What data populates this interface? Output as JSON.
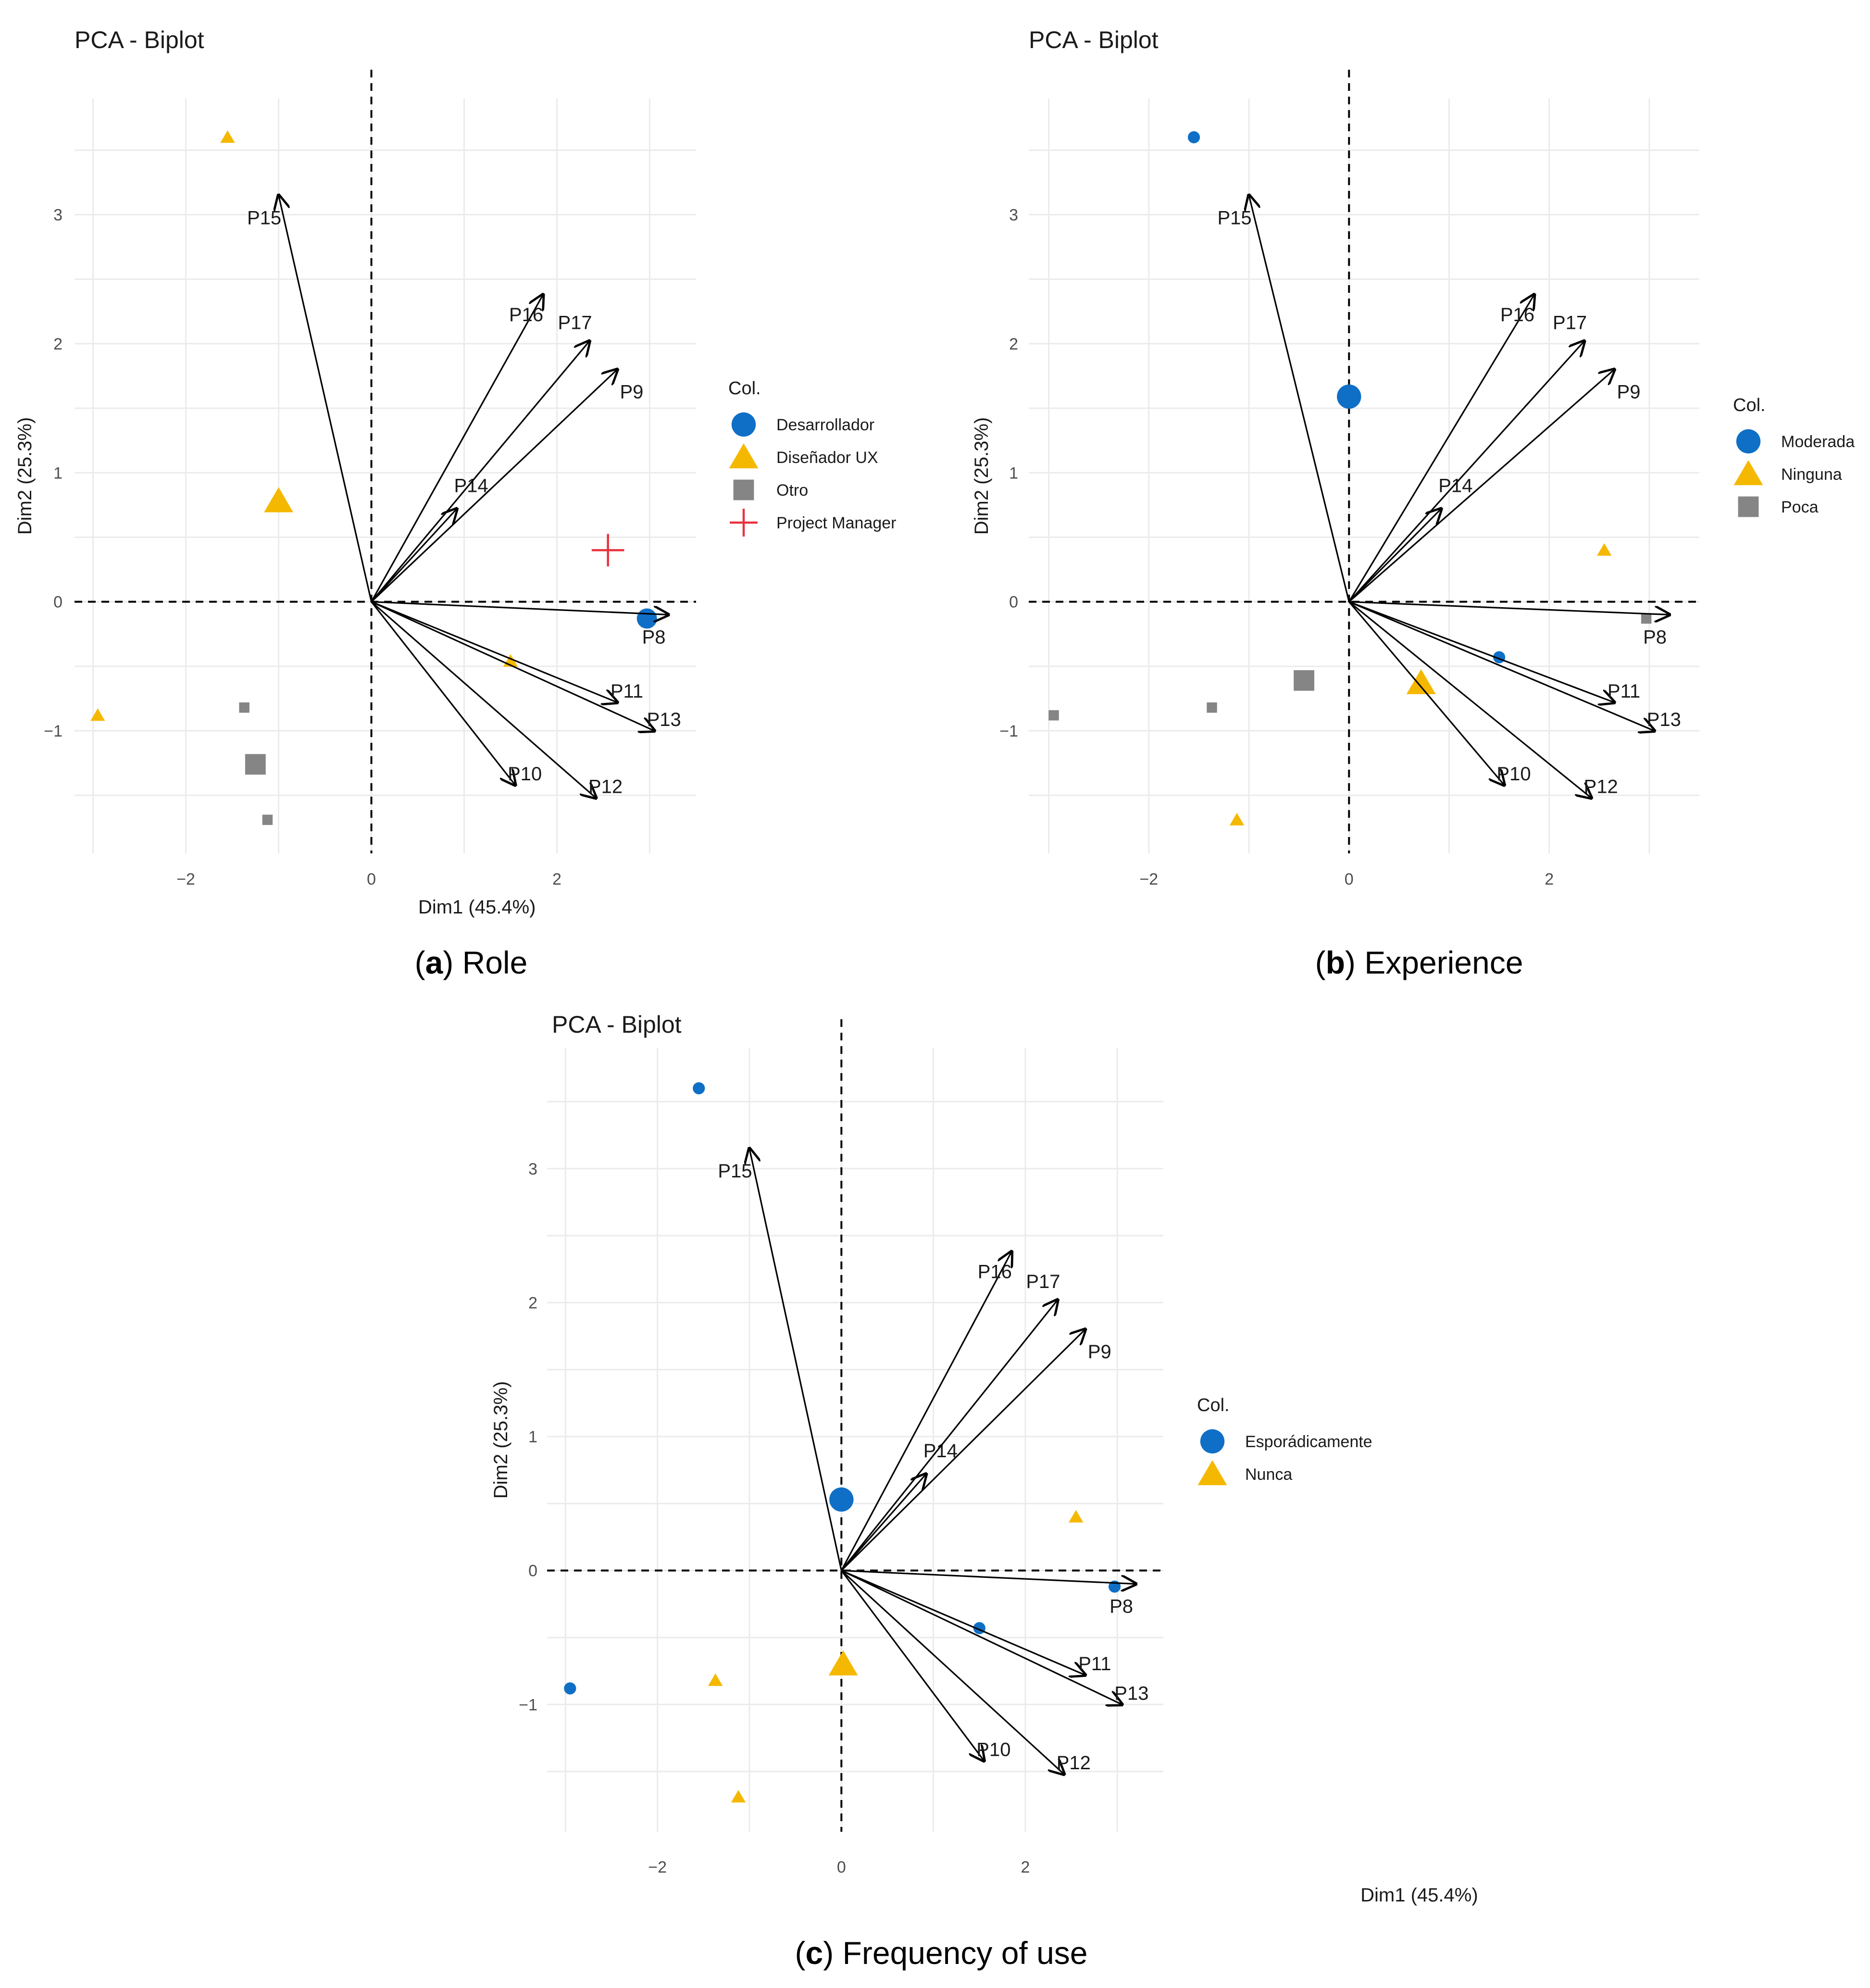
{
  "colors": {
    "blue": "#0f6fc6",
    "yellow": "#f5b800",
    "gray": "#858585",
    "red": "#e8323c",
    "grid": "#ebebeb",
    "axis_text": "#4d4d4d",
    "arrow": "#000000"
  },
  "chart_data": [
    {
      "id": "a",
      "type": "scatter",
      "title": "PCA - Biplot",
      "xlabel": "Dim1 (45.4%)",
      "ylabel": "Dim2 (25.3%)",
      "xlim": [
        -3.2,
        3.5
      ],
      "ylim": [
        -1.95,
        3.9
      ],
      "xticks": [
        -2,
        0,
        2
      ],
      "yticks": [
        -1,
        0,
        1,
        2,
        3
      ],
      "caption_letter": "a",
      "caption_text": "Role",
      "legend_title": "Col.",
      "legend": [
        {
          "label": "Desarrollador",
          "shape": "circle",
          "color": "#0f6fc6"
        },
        {
          "label": "Diseñador UX",
          "shape": "triangle",
          "color": "#f5b800"
        },
        {
          "label": "Otro",
          "shape": "square",
          "color": "#858585"
        },
        {
          "label": "Project Manager",
          "shape": "plus",
          "color": "#e8323c"
        }
      ],
      "vectors": [
        {
          "label": "P8",
          "x": 3.2,
          "y": -0.1
        },
        {
          "label": "P9",
          "x": 2.65,
          "y": 1.8
        },
        {
          "label": "P10",
          "x": 1.55,
          "y": -1.42
        },
        {
          "label": "P11",
          "x": 2.65,
          "y": -0.78
        },
        {
          "label": "P12",
          "x": 2.42,
          "y": -1.52
        },
        {
          "label": "P13",
          "x": 3.05,
          "y": -1.0
        },
        {
          "label": "P14",
          "x": 0.92,
          "y": 0.72
        },
        {
          "label": "P15",
          "x": -1.0,
          "y": 3.15
        },
        {
          "label": "P16",
          "x": 1.85,
          "y": 2.38
        },
        {
          "label": "P17",
          "x": 2.35,
          "y": 2.02
        }
      ],
      "points": [
        {
          "x": -1.55,
          "y": 3.6,
          "shape": "triangle",
          "color": "#f5b800",
          "size": 3
        },
        {
          "x": -1.0,
          "y": 0.78,
          "shape": "triangle",
          "color": "#f5b800",
          "size": 6
        },
        {
          "x": 2.55,
          "y": 0.4,
          "shape": "plus",
          "color": "#e8323c",
          "size": 7
        },
        {
          "x": 2.97,
          "y": -0.13,
          "shape": "circle",
          "color": "#0f6fc6",
          "size": 5
        },
        {
          "x": 1.5,
          "y": -0.46,
          "shape": "triangle",
          "color": "#f5b800",
          "size": 3
        },
        {
          "x": -2.95,
          "y": -0.88,
          "shape": "triangle",
          "color": "#f5b800",
          "size": 3
        },
        {
          "x": -1.37,
          "y": -0.82,
          "shape": "square",
          "color": "#858585",
          "size": 3
        },
        {
          "x": -1.25,
          "y": -1.26,
          "shape": "square",
          "color": "#858585",
          "size": 6
        },
        {
          "x": -1.12,
          "y": -1.69,
          "shape": "square",
          "color": "#858585",
          "size": 3
        }
      ]
    },
    {
      "id": "b",
      "type": "scatter",
      "title": "PCA - Biplot",
      "xlabel": "Dim1 (45.4%)",
      "ylabel": "Dim2 (25.3%)",
      "xlim": [
        -3.2,
        3.5
      ],
      "ylim": [
        -1.95,
        3.9
      ],
      "xticks": [
        -2,
        0,
        2
      ],
      "yticks": [
        -1,
        0,
        1,
        2,
        3
      ],
      "caption_letter": "b",
      "caption_text": "Experience",
      "legend_title": "Col.",
      "legend": [
        {
          "label": "Moderada",
          "shape": "circle",
          "color": "#0f6fc6"
        },
        {
          "label": "Ninguna",
          "shape": "triangle",
          "color": "#f5b800"
        },
        {
          "label": "Poca",
          "shape": "square",
          "color": "#858585"
        }
      ],
      "vectors": [
        {
          "label": "P8",
          "x": 3.2,
          "y": -0.1
        },
        {
          "label": "P9",
          "x": 2.65,
          "y": 1.8
        },
        {
          "label": "P10",
          "x": 1.55,
          "y": -1.42
        },
        {
          "label": "P11",
          "x": 2.65,
          "y": -0.78
        },
        {
          "label": "P12",
          "x": 2.42,
          "y": -1.52
        },
        {
          "label": "P13",
          "x": 3.05,
          "y": -1.0
        },
        {
          "label": "P14",
          "x": 0.92,
          "y": 0.72
        },
        {
          "label": "P15",
          "x": -1.0,
          "y": 3.15
        },
        {
          "label": "P16",
          "x": 1.85,
          "y": 2.38
        },
        {
          "label": "P17",
          "x": 2.35,
          "y": 2.02
        }
      ],
      "points": [
        {
          "x": -1.55,
          "y": 3.6,
          "shape": "circle",
          "color": "#0f6fc6",
          "size": 3
        },
        {
          "x": 0.0,
          "y": 1.59,
          "shape": "circle",
          "color": "#0f6fc6",
          "size": 6
        },
        {
          "x": 2.55,
          "y": 0.4,
          "shape": "triangle",
          "color": "#f5b800",
          "size": 3
        },
        {
          "x": 2.97,
          "y": -0.13,
          "shape": "square",
          "color": "#858585",
          "size": 3
        },
        {
          "x": 1.5,
          "y": -0.43,
          "shape": "circle",
          "color": "#0f6fc6",
          "size": 3
        },
        {
          "x": -0.45,
          "y": -0.61,
          "shape": "square",
          "color": "#858585",
          "size": 6
        },
        {
          "x": 0.72,
          "y": -0.63,
          "shape": "triangle",
          "color": "#f5b800",
          "size": 6
        },
        {
          "x": -2.95,
          "y": -0.88,
          "shape": "square",
          "color": "#858585",
          "size": 3
        },
        {
          "x": -1.37,
          "y": -0.82,
          "shape": "square",
          "color": "#858585",
          "size": 3
        },
        {
          "x": -1.12,
          "y": -1.69,
          "shape": "triangle",
          "color": "#f5b800",
          "size": 3
        }
      ]
    },
    {
      "id": "c",
      "type": "scatter",
      "title": "PCA - Biplot",
      "xlabel": "Dim1 (45.4%)",
      "ylabel": "Dim2 (25.3%)",
      "xlim": [
        -3.2,
        3.5
      ],
      "ylim": [
        -1.95,
        3.9
      ],
      "xticks": [
        -2,
        0,
        2
      ],
      "yticks": [
        -1,
        0,
        1,
        2,
        3
      ],
      "caption_letter": "c",
      "caption_text": "Frequency of use",
      "legend_title": "Col.",
      "legend": [
        {
          "label": "Esporádicamente",
          "shape": "circle",
          "color": "#0f6fc6"
        },
        {
          "label": "Nunca",
          "shape": "triangle",
          "color": "#f5b800"
        }
      ],
      "vectors": [
        {
          "label": "P8",
          "x": 3.2,
          "y": -0.1
        },
        {
          "label": "P9",
          "x": 2.65,
          "y": 1.8
        },
        {
          "label": "P10",
          "x": 1.55,
          "y": -1.42
        },
        {
          "label": "P11",
          "x": 2.65,
          "y": -0.78
        },
        {
          "label": "P12",
          "x": 2.42,
          "y": -1.52
        },
        {
          "label": "P13",
          "x": 3.05,
          "y": -1.0
        },
        {
          "label": "P14",
          "x": 0.92,
          "y": 0.72
        },
        {
          "label": "P15",
          "x": -1.0,
          "y": 3.15
        },
        {
          "label": "P16",
          "x": 1.85,
          "y": 2.38
        },
        {
          "label": "P17",
          "x": 2.35,
          "y": 2.02
        }
      ],
      "points": [
        {
          "x": -1.55,
          "y": 3.6,
          "shape": "circle",
          "color": "#0f6fc6",
          "size": 3
        },
        {
          "x": 0.0,
          "y": 0.53,
          "shape": "circle",
          "color": "#0f6fc6",
          "size": 6
        },
        {
          "x": 2.55,
          "y": 0.4,
          "shape": "triangle",
          "color": "#f5b800",
          "size": 3
        },
        {
          "x": 2.97,
          "y": -0.12,
          "shape": "circle",
          "color": "#0f6fc6",
          "size": 3
        },
        {
          "x": 1.5,
          "y": -0.43,
          "shape": "circle",
          "color": "#0f6fc6",
          "size": 3
        },
        {
          "x": 0.02,
          "y": -0.7,
          "shape": "triangle",
          "color": "#f5b800",
          "size": 6
        },
        {
          "x": -2.95,
          "y": -0.88,
          "shape": "circle",
          "color": "#0f6fc6",
          "size": 3
        },
        {
          "x": -1.37,
          "y": -0.82,
          "shape": "triangle",
          "color": "#f5b800",
          "size": 3
        },
        {
          "x": -1.12,
          "y": -1.69,
          "shape": "triangle",
          "color": "#f5b800",
          "size": 3
        }
      ]
    }
  ]
}
